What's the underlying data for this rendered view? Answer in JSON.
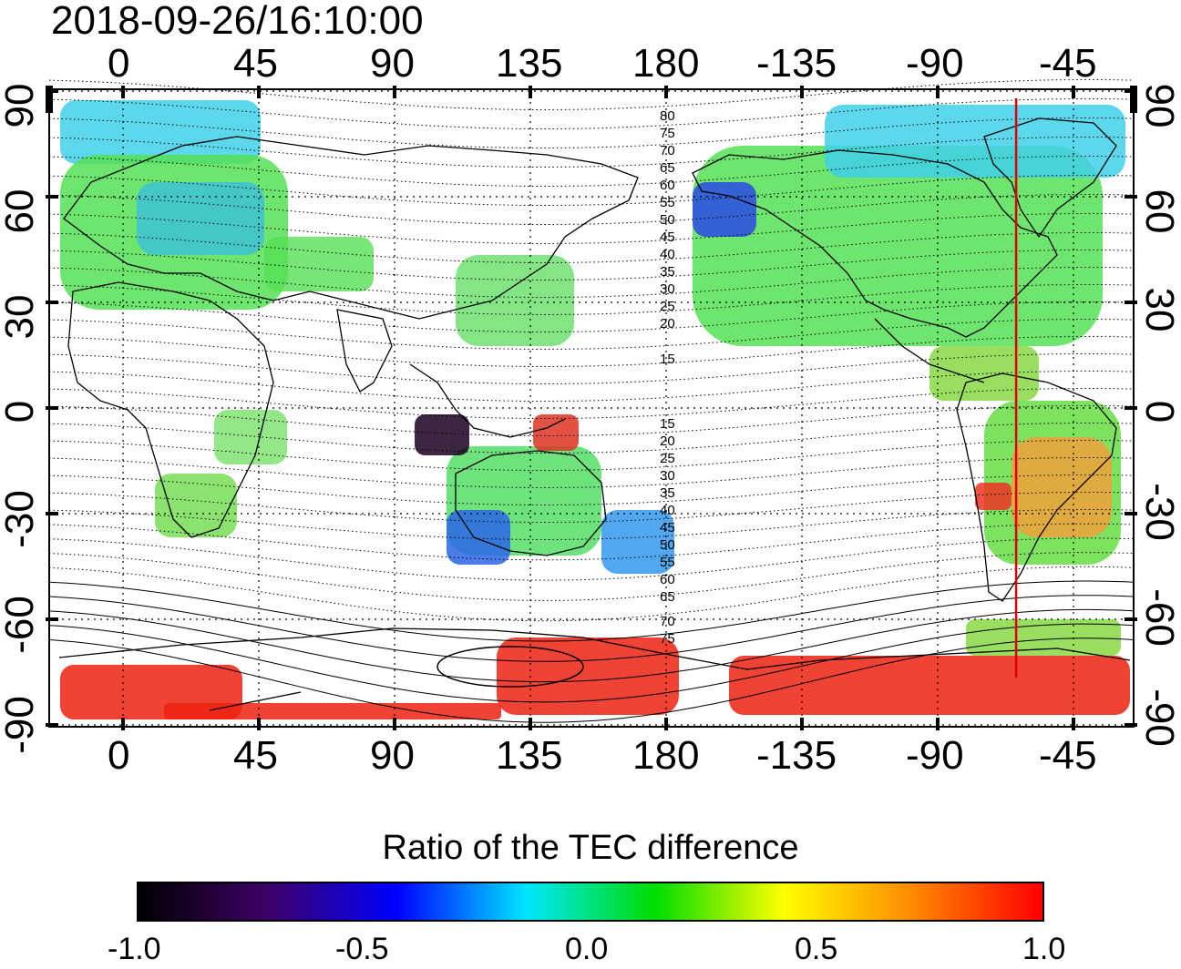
{
  "timestamp": "2018-09-26/16:10:00",
  "colorbar": {
    "title": "Ratio of the TEC difference",
    "ticks": [
      "-1.0",
      "-0.5",
      "0.0",
      "0.5",
      "1.0"
    ],
    "min": -1.0,
    "max": 1.0,
    "colors": [
      "#000000",
      "#3d0066",
      "#0000ff",
      "#00e5ff",
      "#00dd00",
      "#ffff00",
      "#ff8800",
      "#ff0000"
    ]
  },
  "axes": {
    "x_top_labels": [
      "0",
      "45",
      "90",
      "135",
      "180",
      "-135",
      "-90",
      "-45"
    ],
    "x_bottom_labels": [
      "0",
      "45",
      "90",
      "135",
      "180",
      "-135",
      "-90",
      "-45"
    ],
    "y_left_labels": [
      "90",
      "60",
      "30",
      "0",
      "-30",
      "-60",
      "-90"
    ],
    "y_right_labels": [
      "90",
      "60",
      "30",
      "0",
      "-30",
      "-60",
      "-90"
    ]
  },
  "contour_labels_north": [
    "80",
    "75",
    "70",
    "65",
    "60",
    "55",
    "50",
    "45",
    "40",
    "35",
    "30",
    "25",
    "20",
    "15"
  ],
  "contour_labels_south": [
    "15",
    "20",
    "25",
    "30",
    "35",
    "40",
    "45",
    "50",
    "55",
    "60",
    "65",
    "70",
    "75"
  ],
  "marker_longitude": -64
}
